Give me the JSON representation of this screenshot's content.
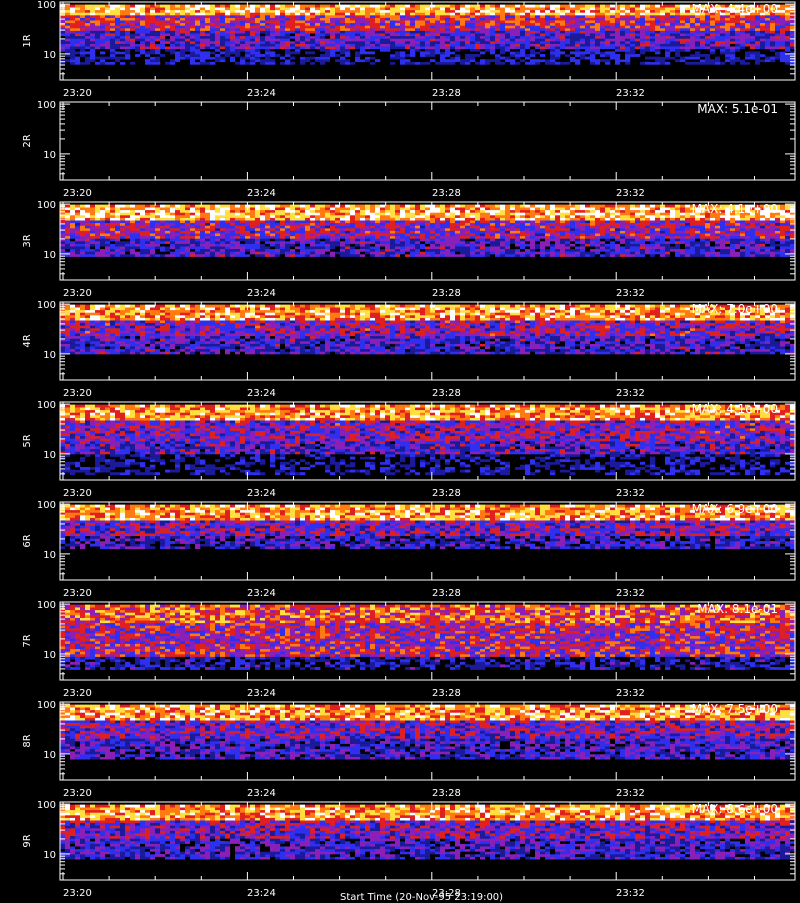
{
  "footer": {
    "start_time_label": "Start Time (20-Nov-95 23:19:00)"
  },
  "chart_data": [
    {
      "type": "heatmap",
      "panel_label": "1R",
      "max_label": "MAX: 4.4e+00",
      "max_value": 4.4,
      "y_scale": "log",
      "y_ticks": [
        {
          "value": 100,
          "label": "100"
        },
        {
          "value": 10,
          "label": "10"
        }
      ],
      "x_ticks": [
        "23:20",
        "23:24",
        "23:28",
        "23:32"
      ],
      "colormap": [
        "#000000",
        "#1a1a9a",
        "#2f2ff0",
        "#8a20b8",
        "#e02020",
        "#ff7a10",
        "#ffe040",
        "#ffffff"
      ],
      "bands": [
        {
          "low": 60,
          "high": 100,
          "intensity": 0.78
        },
        {
          "low": 30,
          "high": 60,
          "intensity": 0.5
        },
        {
          "low": 12,
          "high": 30,
          "intensity": 0.33
        },
        {
          "low": 6,
          "high": 12,
          "intensity": 0.16
        }
      ]
    },
    {
      "type": "heatmap",
      "panel_label": "2R",
      "max_label": "MAX: 5.1e-01",
      "max_value": 0.51,
      "y_scale": "log",
      "y_ticks": [
        {
          "value": 100,
          "label": "100"
        },
        {
          "value": 10,
          "label": "10"
        }
      ],
      "x_ticks": [
        "23:20",
        "23:24",
        "23:28",
        "23:32"
      ],
      "colormap": [
        "#000000",
        "#1a1a9a",
        "#2f2ff0",
        "#8a20b8",
        "#e02020",
        "#ff7a10",
        "#ffe040",
        "#ffffff"
      ],
      "bands": []
    },
    {
      "type": "heatmap",
      "panel_label": "3R",
      "max_label": "MAX: 4.1e+00",
      "max_value": 4.1,
      "y_scale": "log",
      "y_ticks": [
        {
          "value": 100,
          "label": "100"
        },
        {
          "value": 10,
          "label": "10"
        }
      ],
      "x_ticks": [
        "23:20",
        "23:24",
        "23:28",
        "23:32"
      ],
      "colormap": [
        "#000000",
        "#1a1a9a",
        "#2f2ff0",
        "#8a20b8",
        "#e02020",
        "#ff7a10",
        "#ffe040",
        "#ffffff"
      ],
      "bands": [
        {
          "low": 50,
          "high": 100,
          "intensity": 0.78
        },
        {
          "low": 20,
          "high": 50,
          "intensity": 0.45
        },
        {
          "low": 9,
          "high": 20,
          "intensity": 0.3
        }
      ]
    },
    {
      "type": "heatmap",
      "panel_label": "4R",
      "max_label": "MAX: 7.0e+00",
      "max_value": 7.0,
      "y_scale": "log",
      "y_ticks": [
        {
          "value": 100,
          "label": "100"
        },
        {
          "value": 10,
          "label": "10"
        }
      ],
      "x_ticks": [
        "23:20",
        "23:24",
        "23:28",
        "23:32"
      ],
      "colormap": [
        "#000000",
        "#1a1a9a",
        "#2f2ff0",
        "#8a20b8",
        "#e02020",
        "#ff7a10",
        "#ffe040",
        "#ffffff"
      ],
      "bands": [
        {
          "low": 50,
          "high": 100,
          "intensity": 0.74
        },
        {
          "low": 22,
          "high": 50,
          "intensity": 0.42
        },
        {
          "low": 10,
          "high": 22,
          "intensity": 0.3
        }
      ]
    },
    {
      "type": "heatmap",
      "panel_label": "5R",
      "max_label": "MAX: 4.1e+00",
      "max_value": 4.1,
      "y_scale": "log",
      "y_ticks": [
        {
          "value": 100,
          "label": "100"
        },
        {
          "value": 10,
          "label": "10"
        }
      ],
      "x_ticks": [
        "23:20",
        "23:24",
        "23:28",
        "23:32"
      ],
      "colormap": [
        "#000000",
        "#1a1a9a",
        "#2f2ff0",
        "#8a20b8",
        "#e02020",
        "#ff7a10",
        "#ffe040",
        "#ffffff"
      ],
      "bands": [
        {
          "low": 45,
          "high": 100,
          "intensity": 0.72
        },
        {
          "low": 18,
          "high": 45,
          "intensity": 0.42
        },
        {
          "low": 10,
          "high": 18,
          "intensity": 0.32
        },
        {
          "low": 4,
          "high": 10,
          "intensity": 0.12
        }
      ]
    },
    {
      "type": "heatmap",
      "panel_label": "6R",
      "max_label": "MAX: 6.9e+00",
      "max_value": 6.9,
      "y_scale": "log",
      "y_ticks": [
        {
          "value": 100,
          "label": "100"
        },
        {
          "value": 10,
          "label": "10"
        }
      ],
      "x_ticks": [
        "23:20",
        "23:24",
        "23:28",
        "23:32"
      ],
      "colormap": [
        "#000000",
        "#1a1a9a",
        "#2f2ff0",
        "#8a20b8",
        "#e02020",
        "#ff7a10",
        "#ffe040",
        "#ffffff"
      ],
      "bands": [
        {
          "low": 50,
          "high": 100,
          "intensity": 0.74
        },
        {
          "low": 22,
          "high": 50,
          "intensity": 0.4
        },
        {
          "low": 12,
          "high": 22,
          "intensity": 0.25
        }
      ]
    },
    {
      "type": "heatmap",
      "panel_label": "7R",
      "max_label": "MAX: 8.1e-01",
      "max_value": 0.81,
      "y_scale": "log",
      "y_ticks": [
        {
          "value": 100,
          "label": "100"
        },
        {
          "value": 10,
          "label": "10"
        }
      ],
      "x_ticks": [
        "23:20",
        "23:24",
        "23:28",
        "23:32"
      ],
      "colormap": [
        "#000000",
        "#1a1a9a",
        "#2f2ff0",
        "#8a20b8",
        "#e02020",
        "#ff7a10",
        "#ffe040",
        "#ffffff"
      ],
      "bands": [
        {
          "low": 40,
          "high": 100,
          "intensity": 0.62
        },
        {
          "low": 15,
          "high": 40,
          "intensity": 0.48
        },
        {
          "low": 9,
          "high": 15,
          "intensity": 0.5
        },
        {
          "low": 5,
          "high": 9,
          "intensity": 0.18
        }
      ]
    },
    {
      "type": "heatmap",
      "panel_label": "8R",
      "max_label": "MAX: 7.5e+00",
      "max_value": 7.5,
      "y_scale": "log",
      "y_ticks": [
        {
          "value": 100,
          "label": "100"
        },
        {
          "value": 10,
          "label": "10"
        }
      ],
      "x_ticks": [
        "23:20",
        "23:24",
        "23:28",
        "23:32"
      ],
      "colormap": [
        "#000000",
        "#1a1a9a",
        "#2f2ff0",
        "#8a20b8",
        "#e02020",
        "#ff7a10",
        "#ffe040",
        "#ffffff"
      ],
      "bands": [
        {
          "low": 50,
          "high": 100,
          "intensity": 0.74
        },
        {
          "low": 20,
          "high": 50,
          "intensity": 0.4
        },
        {
          "low": 8,
          "high": 20,
          "intensity": 0.28
        }
      ]
    },
    {
      "type": "heatmap",
      "panel_label": "9R",
      "max_label": "MAX: 8.6e+00",
      "max_value": 8.6,
      "y_scale": "log",
      "y_ticks": [
        {
          "value": 100,
          "label": "100"
        },
        {
          "value": 10,
          "label": "10"
        }
      ],
      "x_ticks": [
        "23:20",
        "23:24",
        "23:28",
        "23:32"
      ],
      "colormap": [
        "#000000",
        "#1a1a9a",
        "#2f2ff0",
        "#8a20b8",
        "#e02020",
        "#ff7a10",
        "#ffe040",
        "#ffffff"
      ],
      "bands": [
        {
          "low": 50,
          "high": 100,
          "intensity": 0.74
        },
        {
          "low": 20,
          "high": 50,
          "intensity": 0.4
        },
        {
          "low": 8,
          "high": 20,
          "intensity": 0.28
        }
      ]
    }
  ]
}
